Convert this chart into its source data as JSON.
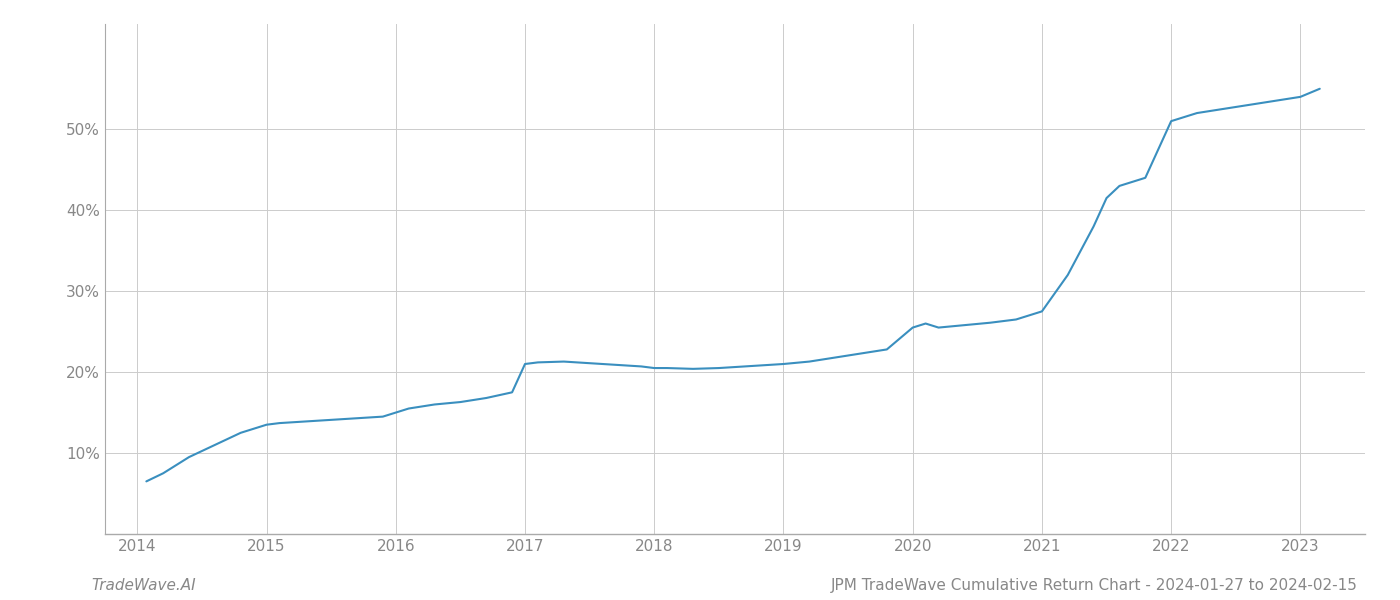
{
  "title": "JPM TradeWave Cumulative Return Chart - 2024-01-27 to 2024-02-15",
  "watermark": "TradeWave.AI",
  "line_color": "#3a8fbf",
  "background_color": "#ffffff",
  "grid_color": "#cccccc",
  "x_years": [
    2014,
    2015,
    2016,
    2017,
    2018,
    2019,
    2020,
    2021,
    2022,
    2023
  ],
  "x_data": [
    2014.07,
    2014.2,
    2014.4,
    2014.6,
    2014.8,
    2015.0,
    2015.1,
    2015.3,
    2015.5,
    2015.7,
    2015.9,
    2016.1,
    2016.3,
    2016.5,
    2016.7,
    2016.9,
    2017.0,
    2017.1,
    2017.3,
    2017.5,
    2017.7,
    2017.9,
    2018.0,
    2018.1,
    2018.3,
    2018.5,
    2018.7,
    2018.9,
    2019.0,
    2019.2,
    2019.4,
    2019.6,
    2019.8,
    2020.0,
    2020.1,
    2020.2,
    2020.4,
    2020.6,
    2020.8,
    2021.0,
    2021.2,
    2021.4,
    2021.5,
    2021.6,
    2021.8,
    2022.0,
    2022.2,
    2022.4,
    2022.6,
    2022.8,
    2023.0,
    2023.15
  ],
  "y_data": [
    6.5,
    7.5,
    9.5,
    11.0,
    12.5,
    13.5,
    13.7,
    13.9,
    14.1,
    14.3,
    14.5,
    15.5,
    16.0,
    16.3,
    16.8,
    17.5,
    21.0,
    21.2,
    21.3,
    21.1,
    20.9,
    20.7,
    20.5,
    20.5,
    20.4,
    20.5,
    20.7,
    20.9,
    21.0,
    21.3,
    21.8,
    22.3,
    22.8,
    25.5,
    26.0,
    25.5,
    25.8,
    26.1,
    26.5,
    27.5,
    32.0,
    38.0,
    41.5,
    43.0,
    44.0,
    51.0,
    52.0,
    52.5,
    53.0,
    53.5,
    54.0,
    55.0
  ],
  "yticks": [
    10,
    20,
    30,
    40,
    50
  ],
  "ylim": [
    0,
    63
  ],
  "xlim": [
    2013.75,
    2023.5
  ],
  "tick_label_color": "#888888",
  "axis_line_color": "#aaaaaa",
  "title_fontsize": 11,
  "watermark_fontsize": 11,
  "tick_fontsize": 11
}
